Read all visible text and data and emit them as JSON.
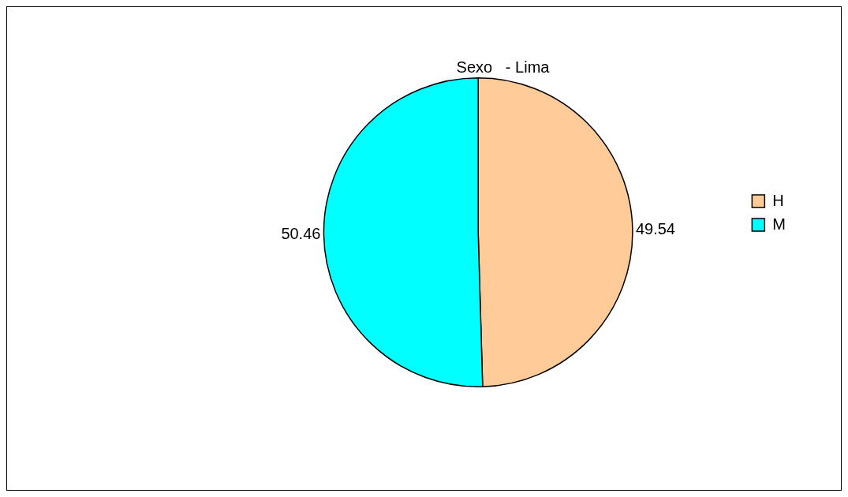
{
  "chart_data": {
    "type": "pie",
    "title": "Sexo   - Lima",
    "categories": [
      "H",
      "M"
    ],
    "values": [
      49.54,
      50.46
    ],
    "colors": [
      "#ffcc99",
      "#00ffff"
    ],
    "data_labels": true,
    "legend": "right"
  }
}
